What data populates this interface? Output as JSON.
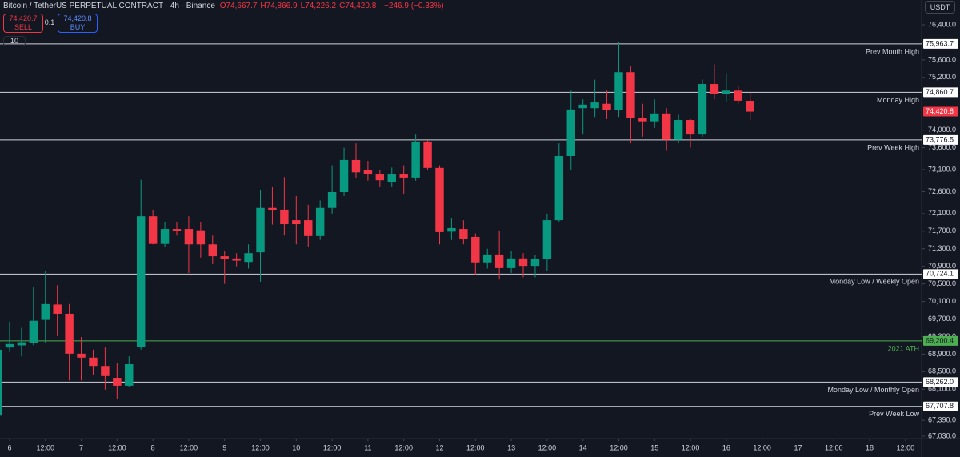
{
  "header": {
    "title": "Bitcoin / TetherUS PERPETUAL CONTRACT · 4h · Binance",
    "ohlc": [
      {
        "key": "O",
        "value": "74,667.7"
      },
      {
        "key": "H",
        "value": "74,866.9"
      },
      {
        "key": "L",
        "value": "74,226.2"
      },
      {
        "key": "C",
        "value": "74,420.8"
      }
    ],
    "change": "−246.9 (−0.33%)",
    "sell_price": "74,420.7",
    "sell": "SELL",
    "qty": "0.1",
    "buy_price": "74,420.8",
    "buy": "BUY",
    "indicators": "10",
    "currency": "USDT"
  },
  "chart_data": {
    "type": "candlestick",
    "up_color": "#089981",
    "down_color": "#f23645",
    "x": [
      -4,
      0,
      4,
      8,
      12,
      16,
      20,
      24,
      28,
      32,
      36,
      40,
      44,
      48,
      52,
      56,
      60,
      64,
      68,
      72,
      76,
      80,
      84,
      88,
      92,
      96,
      100,
      104,
      108,
      112,
      116,
      120,
      124,
      128,
      132,
      136,
      140,
      144,
      148,
      152,
      156,
      160,
      164,
      168,
      172,
      176,
      180,
      184,
      188,
      192,
      196,
      200,
      204,
      208,
      212,
      216,
      220,
      224,
      228,
      232,
      236,
      240,
      244,
      248
    ],
    "open": [
      67500,
      69050,
      69100,
      69150,
      69680,
      70030,
      69820,
      68910,
      68820,
      68630,
      68360,
      68180,
      69070,
      72040,
      71410,
      71750,
      71750,
      71720,
      71400,
      71130,
      71080,
      71000,
      71220,
      72230,
      72190,
      71950,
      71950,
      71590,
      72230,
      72590,
      73320,
      73100,
      72990,
      72810,
      72990,
      72920,
      73740,
      73140,
      71690,
      71750,
      71570,
      70990,
      71170,
      70860,
      71080,
      70910,
      71060,
      71950,
      73410,
      74500,
      74500,
      74600,
      74450,
      75320,
      74270,
      74200,
      74380,
      73780,
      74230,
      73900,
      75050,
      74830,
      74900,
      74667.7
    ],
    "high": [
      69100,
      69640,
      69500,
      70430,
      70800,
      70470,
      70040,
      69290,
      69000,
      69050,
      68700,
      68850,
      72870,
      72190,
      71900,
      71900,
      72040,
      71900,
      71600,
      71250,
      71200,
      71400,
      72630,
      72700,
      72930,
      72500,
      72300,
      72400,
      73200,
      73600,
      73700,
      73300,
      73100,
      73150,
      73200,
      73900,
      73770,
      73200,
      72000,
      71950,
      71650,
      71300,
      71700,
      71250,
      71200,
      71150,
      72100,
      73700,
      74900,
      74700,
      75150,
      74900,
      76000,
      75450,
      74600,
      74700,
      74500,
      74350,
      74250,
      75150,
      75500,
      75300,
      75000,
      74866.9
    ],
    "low": [
      67400,
      68950,
      68850,
      69100,
      69150,
      69310,
      68300,
      68300,
      68420,
      68090,
      67880,
      68150,
      69000,
      71400,
      71350,
      71600,
      70750,
      71100,
      70950,
      70500,
      70900,
      70850,
      70550,
      71850,
      71600,
      71400,
      71350,
      71500,
      72100,
      72500,
      72900,
      72850,
      72700,
      72700,
      72550,
      72850,
      73100,
      71400,
      71500,
      71400,
      70700,
      70850,
      70600,
      70750,
      70650,
      70650,
      70800,
      71900,
      73100,
      73900,
      74300,
      74250,
      74300,
      73700,
      73850,
      74050,
      73530,
      73700,
      73600,
      73850,
      74700,
      74650,
      74600,
      74226.2
    ],
    "close": [
      69000,
      69130,
      69170,
      69660,
      70040,
      69820,
      68910,
      68820,
      68630,
      68400,
      68180,
      68670,
      72040,
      71410,
      71750,
      71700,
      71400,
      71400,
      71130,
      71060,
      71030,
      71200,
      72230,
      72170,
      71860,
      71860,
      71590,
      72230,
      72590,
      73320,
      73040,
      72990,
      72860,
      72990,
      72920,
      73740,
      73140,
      71680,
      71770,
      71530,
      70990,
      71170,
      70860,
      71080,
      70910,
      71060,
      71950,
      73410,
      74470,
      74580,
      74630,
      74450,
      75320,
      74270,
      74200,
      74380,
      73780,
      74230,
      73900,
      75050,
      74830,
      74900,
      74670,
      74420.8
    ],
    "xlim": [
      -3.2,
      305.4
    ],
    "ylim": [
      66975,
      76965
    ],
    "xticks": [
      {
        "value": 0,
        "label": "6"
      },
      {
        "value": 12,
        "label": "12:00"
      },
      {
        "value": 24,
        "label": "7"
      },
      {
        "value": 36,
        "label": "12:00"
      },
      {
        "value": 48,
        "label": "8"
      },
      {
        "value": 60,
        "label": "12:00"
      },
      {
        "value": 72,
        "label": "9"
      },
      {
        "value": 84,
        "label": "12:00"
      },
      {
        "value": 96,
        "label": "10"
      },
      {
        "value": 108,
        "label": "12:00"
      },
      {
        "value": 120,
        "label": "11"
      },
      {
        "value": 132,
        "label": "12:00"
      },
      {
        "value": 144,
        "label": "12"
      },
      {
        "value": 156,
        "label": "12:00"
      },
      {
        "value": 168,
        "label": "13"
      },
      {
        "value": 180,
        "label": "12:00"
      },
      {
        "value": 192,
        "label": "14"
      },
      {
        "value": 204,
        "label": "12:00"
      },
      {
        "value": 216,
        "label": "15"
      },
      {
        "value": 228,
        "label": "12:00"
      },
      {
        "value": 240,
        "label": "16"
      },
      {
        "value": 252,
        "label": "12:00"
      },
      {
        "value": 264,
        "label": "17"
      },
      {
        "value": 276,
        "label": "12:00"
      },
      {
        "value": 288,
        "label": "18"
      },
      {
        "value": 300,
        "label": "12:00"
      }
    ],
    "yticks": [
      {
        "value": 76400,
        "label": "76,400.0"
      },
      {
        "value": 76000,
        "label": "76,000.0"
      },
      {
        "value": 75600,
        "label": "75,600.0"
      },
      {
        "value": 75200,
        "label": "75,200.0"
      },
      {
        "value": 74000,
        "label": "74,000.0"
      },
      {
        "value": 73600,
        "label": "73,600.0"
      },
      {
        "value": 73100,
        "label": "73,100.0"
      },
      {
        "value": 72600,
        "label": "72,600.0"
      },
      {
        "value": 72100,
        "label": "72,100.0"
      },
      {
        "value": 71700,
        "label": "71,700.0"
      },
      {
        "value": 71300,
        "label": "71,300.0"
      },
      {
        "value": 70900,
        "label": "70,900.0"
      },
      {
        "value": 70500,
        "label": "70,500.0"
      },
      {
        "value": 70100,
        "label": "70,100.0"
      },
      {
        "value": 69700,
        "label": "69,700.0"
      },
      {
        "value": 69300,
        "label": "69,300.0"
      },
      {
        "value": 68900,
        "label": "68,900.0"
      },
      {
        "value": 68500,
        "label": "68,500.0"
      },
      {
        "value": 68100,
        "label": "68,100.0"
      },
      {
        "value": 67700,
        "label": "67,700.0"
      },
      {
        "value": 67390,
        "label": "67,390.0"
      },
      {
        "value": 67030,
        "label": "67,030.0"
      }
    ],
    "levels": [
      {
        "value": 75963.7,
        "tag": "75,963.7",
        "label": "Prev Month High",
        "color": "#d1d4dc"
      },
      {
        "value": 74860.7,
        "tag": "74,860.7",
        "label": "Monday High",
        "color": "#d1d4dc"
      },
      {
        "value": 73776.5,
        "tag": "73,776.5",
        "label": "Prev Week High",
        "color": "#d1d4dc"
      },
      {
        "value": 70724.1,
        "tag": "70,724.1",
        "label": "Monday Low / Weekly Open",
        "color": "#d1d4dc"
      },
      {
        "value": 69200.4,
        "tag": "69,200.4",
        "label": "2021 ATH",
        "color": "#4caf50"
      },
      {
        "value": 68262.0,
        "tag": "68,262.0",
        "label": "Monday Low / Monthly Open",
        "color": "#d1d4dc"
      },
      {
        "value": 67707.8,
        "tag": "67,707.8",
        "label": "Prev Week Low",
        "color": "#d1d4dc"
      }
    ],
    "last_price": {
      "value": 74420.8,
      "label": "74,420.8",
      "color": "#f23645"
    }
  }
}
